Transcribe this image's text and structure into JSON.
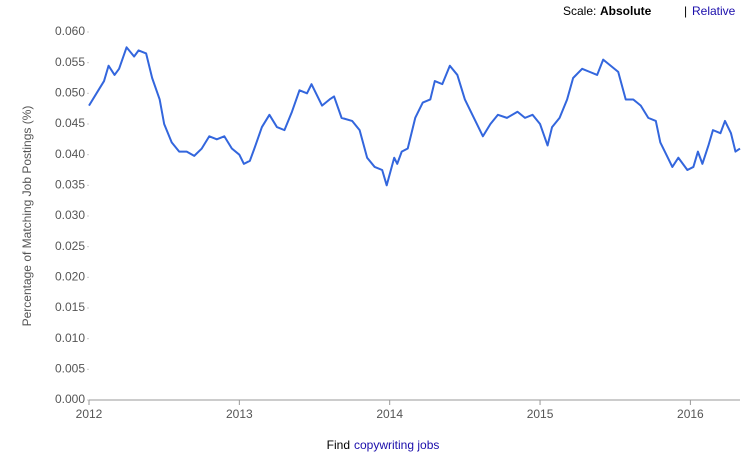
{
  "chart_data": {
    "type": "line",
    "scale_label": "Scale:",
    "scale_options": [
      "Absolute",
      "Relative"
    ],
    "scale_separator": "|",
    "footer_prefix": "Find",
    "footer_link": "copywriting jobs",
    "ylabel": "Percentage of Matching Job Postings (%)",
    "color": "#3366dd",
    "xlim": [
      2012,
      2016.33
    ],
    "xticks": [
      2012,
      2013,
      2014,
      2015,
      2016
    ],
    "ylim": [
      0,
      0.06
    ],
    "yticks": [
      {
        "value": 0,
        "label": "0.000"
      },
      {
        "value": 0.005,
        "label": "0.005"
      },
      {
        "value": 0.01,
        "label": "0.010"
      },
      {
        "value": 0.015,
        "label": "0.015"
      },
      {
        "value": 0.02,
        "label": "0.020"
      },
      {
        "value": 0.025,
        "label": "0.025"
      },
      {
        "value": 0.03,
        "label": "0.030"
      },
      {
        "value": 0.035,
        "label": "0.035"
      },
      {
        "value": 0.04,
        "label": "0.040"
      },
      {
        "value": 0.045,
        "label": "0.045"
      },
      {
        "value": 0.05,
        "label": "0.050"
      },
      {
        "value": 0.055,
        "label": "0.055"
      },
      {
        "value": 0.06,
        "label": "0.060"
      }
    ],
    "x": [
      2012.0,
      2012.05,
      2012.1,
      2012.13,
      2012.17,
      2012.2,
      2012.25,
      2012.3,
      2012.33,
      2012.38,
      2012.42,
      2012.47,
      2012.5,
      2012.55,
      2012.6,
      2012.65,
      2012.7,
      2012.75,
      2012.8,
      2012.85,
      2012.9,
      2012.95,
      2013.0,
      2013.03,
      2013.07,
      2013.1,
      2013.15,
      2013.2,
      2013.25,
      2013.3,
      2013.35,
      2013.4,
      2013.45,
      2013.48,
      2013.55,
      2013.6,
      2013.63,
      2013.68,
      2013.75,
      2013.8,
      2013.85,
      2013.9,
      2013.95,
      2013.98,
      2014.03,
      2014.05,
      2014.08,
      2014.12,
      2014.17,
      2014.22,
      2014.27,
      2014.3,
      2014.35,
      2014.4,
      2014.45,
      2014.5,
      2014.55,
      2014.62,
      2014.67,
      2014.72,
      2014.78,
      2014.85,
      2014.9,
      2014.95,
      2015.0,
      2015.05,
      2015.08,
      2015.13,
      2015.18,
      2015.22,
      2015.28,
      2015.33,
      2015.38,
      2015.42,
      2015.47,
      2015.52,
      2015.57,
      2015.62,
      2015.67,
      2015.72,
      2015.77,
      2015.8,
      2015.85,
      2015.88,
      2015.92,
      2015.95,
      2015.98,
      2016.02,
      2016.05,
      2016.08,
      2016.12,
      2016.15,
      2016.2,
      2016.23,
      2016.27,
      2016.3,
      2016.33
    ],
    "values": [
      0.048,
      0.05,
      0.052,
      0.0545,
      0.053,
      0.054,
      0.0575,
      0.056,
      0.057,
      0.0565,
      0.0525,
      0.049,
      0.045,
      0.042,
      0.0405,
      0.0405,
      0.0398,
      0.041,
      0.043,
      0.0425,
      0.043,
      0.041,
      0.04,
      0.0385,
      0.039,
      0.041,
      0.0445,
      0.0465,
      0.0445,
      0.044,
      0.047,
      0.0505,
      0.05,
      0.0515,
      0.048,
      0.049,
      0.0495,
      0.046,
      0.0455,
      0.044,
      0.0395,
      0.038,
      0.0375,
      0.035,
      0.0395,
      0.0385,
      0.0405,
      0.041,
      0.046,
      0.0485,
      0.049,
      0.052,
      0.0515,
      0.0545,
      0.053,
      0.049,
      0.0465,
      0.043,
      0.045,
      0.0465,
      0.046,
      0.047,
      0.046,
      0.0465,
      0.045,
      0.0415,
      0.0445,
      0.046,
      0.049,
      0.0525,
      0.054,
      0.0535,
      0.053,
      0.0555,
      0.0545,
      0.0535,
      0.049,
      0.049,
      0.048,
      0.046,
      0.0455,
      0.042,
      0.0395,
      0.038,
      0.0395,
      0.0385,
      0.0375,
      0.038,
      0.0405,
      0.0385,
      0.0415,
      0.044,
      0.0435,
      0.0455,
      0.0435,
      0.0405,
      0.041
    ]
  }
}
